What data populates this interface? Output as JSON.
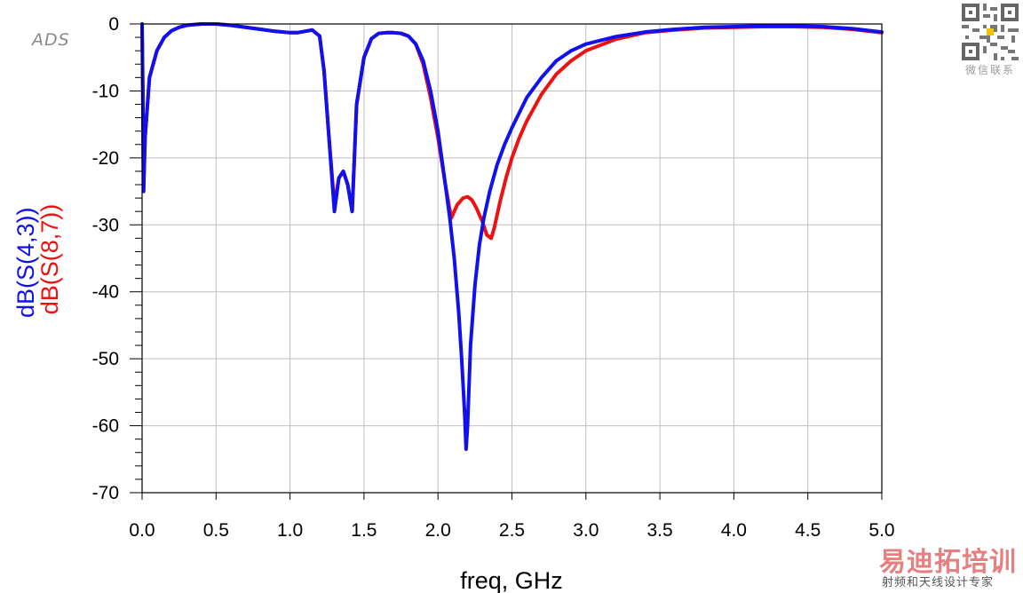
{
  "watermark": {
    "ads_logo": "ADS",
    "qr_caption": "微信联系",
    "brand_main": "易迪拓培训",
    "brand_sub": "射频和天线设计专家"
  },
  "colors": {
    "series_blue": "#1111ee",
    "series_red": "#ee1111",
    "grid": "#bfbfbf",
    "axis": "#000000"
  },
  "chart_data": {
    "type": "line",
    "title": "",
    "xlabel": "freq, GHz",
    "ylabel_parts": [
      "dB(S(4,3))",
      "dB(S(8,7))"
    ],
    "xlim": [
      0,
      5
    ],
    "ylim": [
      -70,
      0
    ],
    "x_ticks": [
      0.0,
      0.5,
      1.0,
      1.5,
      2.0,
      2.5,
      3.0,
      3.5,
      4.0,
      4.5,
      5.0
    ],
    "x_tick_labels": [
      "0.0",
      "0.5",
      "1.0",
      "1.5",
      "2.0",
      "2.5",
      "3.0",
      "3.5",
      "4.0",
      "4.5",
      "5.0"
    ],
    "y_ticks": [
      0,
      -10,
      -20,
      -30,
      -40,
      -50,
      -60,
      -70
    ],
    "y_tick_labels": [
      "0",
      "-10",
      "-20",
      "-30",
      "-40",
      "-50",
      "-60",
      "-70"
    ],
    "grid": true,
    "series": [
      {
        "name": "dB(S(8,7))",
        "color": "#ee1111",
        "x": [
          0.0,
          0.005,
          0.01,
          0.02,
          0.05,
          0.1,
          0.15,
          0.2,
          0.25,
          0.3,
          0.4,
          0.5,
          0.6,
          0.7,
          0.8,
          0.9,
          1.0,
          1.05,
          1.1,
          1.15,
          1.2,
          1.23,
          1.26,
          1.3,
          1.33,
          1.36,
          1.39,
          1.42,
          1.45,
          1.5,
          1.55,
          1.6,
          1.65,
          1.7,
          1.75,
          1.8,
          1.85,
          1.9,
          1.95,
          2.0,
          2.05,
          2.09,
          2.13,
          2.17,
          2.2,
          2.23,
          2.26,
          2.3,
          2.33,
          2.36,
          2.38,
          2.42,
          2.46,
          2.5,
          2.55,
          2.6,
          2.7,
          2.8,
          2.9,
          3.0,
          3.2,
          3.4,
          3.6,
          3.8,
          4.0,
          4.2,
          4.4,
          4.6,
          4.8,
          5.0
        ],
        "y": [
          0,
          -10,
          -25,
          -17,
          -8,
          -4,
          -2,
          -1,
          -0.5,
          -0.2,
          0,
          0,
          -0.2,
          -0.5,
          -0.8,
          -1.1,
          -1.3,
          -1.3,
          -1.1,
          -0.9,
          -1.8,
          -7,
          -16,
          -27,
          -23,
          -22,
          -24,
          -28,
          -12,
          -5,
          -2.2,
          -1.4,
          -1.3,
          -1.3,
          -1.4,
          -1.8,
          -3,
          -6,
          -11,
          -17,
          -24,
          -29,
          -27,
          -26,
          -25.8,
          -26.3,
          -27.5,
          -29.5,
          -31.5,
          -32,
          -30.5,
          -26.5,
          -23,
          -20,
          -17,
          -14.5,
          -10.5,
          -7.5,
          -5.5,
          -4,
          -2.3,
          -1.3,
          -0.9,
          -0.6,
          -0.5,
          -0.4,
          -0.4,
          -0.5,
          -0.8,
          -1.3
        ]
      },
      {
        "name": "dB(S(4,3))",
        "color": "#1111ee",
        "x": [
          0.0,
          0.005,
          0.01,
          0.02,
          0.05,
          0.1,
          0.15,
          0.2,
          0.25,
          0.3,
          0.4,
          0.5,
          0.6,
          0.7,
          0.8,
          0.9,
          1.0,
          1.05,
          1.1,
          1.15,
          1.2,
          1.23,
          1.26,
          1.3,
          1.33,
          1.36,
          1.39,
          1.42,
          1.45,
          1.5,
          1.55,
          1.6,
          1.65,
          1.7,
          1.75,
          1.8,
          1.85,
          1.9,
          1.95,
          2.0,
          2.05,
          2.08,
          2.11,
          2.14,
          2.16,
          2.18,
          2.19,
          2.2,
          2.22,
          2.25,
          2.28,
          2.31,
          2.35,
          2.4,
          2.45,
          2.5,
          2.6,
          2.7,
          2.8,
          2.9,
          3.0,
          3.2,
          3.4,
          3.6,
          3.8,
          4.0,
          4.2,
          4.4,
          4.6,
          4.8,
          5.0
        ],
        "y": [
          0,
          -10,
          -25,
          -17,
          -8,
          -4,
          -2,
          -1,
          -0.5,
          -0.2,
          0,
          0,
          -0.2,
          -0.5,
          -0.8,
          -1.1,
          -1.3,
          -1.3,
          -1.1,
          -0.9,
          -1.8,
          -7,
          -16,
          -28,
          -23,
          -22,
          -24,
          -28,
          -12,
          -5,
          -2.2,
          -1.4,
          -1.3,
          -1.3,
          -1.4,
          -1.8,
          -3,
          -5.5,
          -10,
          -16,
          -24,
          -29,
          -35,
          -43,
          -50,
          -58,
          -63.5,
          -60,
          -48,
          -39,
          -33,
          -29,
          -25,
          -21,
          -18,
          -15.5,
          -11,
          -8,
          -5.5,
          -4,
          -3,
          -1.9,
          -1.2,
          -0.8,
          -0.5,
          -0.4,
          -0.3,
          -0.3,
          -0.4,
          -0.7,
          -1.2
        ]
      }
    ]
  }
}
